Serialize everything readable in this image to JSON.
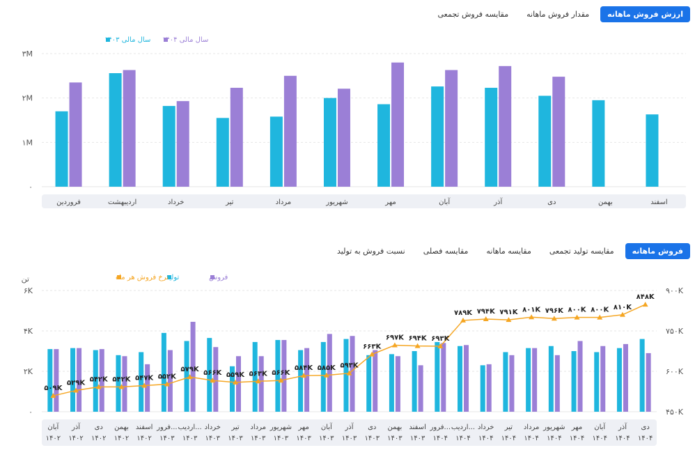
{
  "top_tabs": [
    {
      "label": "ارزش فروش ماهانه",
      "active": true
    },
    {
      "label": "مقدار فروش ماهانه",
      "active": false
    },
    {
      "label": "مقایسه فروش تجمعی",
      "active": false
    }
  ],
  "bottom_tabs": [
    {
      "label": "فروش ماهانه",
      "active": true
    },
    {
      "label": "مقایسه تولید تجمعی",
      "active": false
    },
    {
      "label": "مقایسه ماهانه",
      "active": false
    },
    {
      "label": "مقایسه فصلی",
      "active": false
    },
    {
      "label": "نسبت فروش به تولید",
      "active": false
    }
  ],
  "colors": {
    "cyan": "#1fb6de",
    "purple": "#9b7fd6",
    "orange": "#f5a623",
    "accent": "#1a73e8"
  },
  "chart_data": [
    {
      "type": "bar",
      "yticks": [
        "۰",
        "۱M",
        "۲M",
        "۳M"
      ],
      "ylim": [
        0,
        3000000
      ],
      "categories": [
        "فروردین",
        "اردیبهشت",
        "خرداد",
        "تیر",
        "مرداد",
        "شهریور",
        "مهر",
        "آبان",
        "آذر",
        "دی",
        "بهمن",
        "اسفند"
      ],
      "series": [
        {
          "name": "سال مالی ۱۴۰۳",
          "color": "cyan",
          "values": [
            1700000,
            2560000,
            1820000,
            1550000,
            1580000,
            2000000,
            1860000,
            2260000,
            2230000,
            2050000,
            1950000,
            1630000
          ]
        },
        {
          "name": "سال مالی ۱۴۰۴",
          "color": "purple",
          "values": [
            2350000,
            2630000,
            1930000,
            2230000,
            2500000,
            2210000,
            2800000,
            2630000,
            2720000,
            2480000,
            null,
            null
          ]
        }
      ]
    },
    {
      "type": "bar+line",
      "ylabel_left": "تن",
      "yticks_left": [
        "۰",
        "۲K",
        "۴K",
        "۶K"
      ],
      "ylim_left": [
        0,
        6000
      ],
      "yticks_right": [
        "۴۵۰K",
        "۶۰۰K",
        "۷۵۰K",
        "۹۰۰K"
      ],
      "ylim_right": [
        450000,
        900000
      ],
      "categories": [
        [
          "آبان",
          "۱۴۰۲"
        ],
        [
          "آذر",
          "۱۴۰۲"
        ],
        [
          "دی",
          "۱۴۰۲"
        ],
        [
          "بهمن",
          "۱۴۰۲"
        ],
        [
          "اسفند",
          "۱۴۰۲"
        ],
        [
          "فرور...",
          "۱۴۰۳"
        ],
        [
          "اردیب...",
          "۱۴۰۳"
        ],
        [
          "خرداد",
          "۱۴۰۳"
        ],
        [
          "تیر",
          "۱۴۰۳"
        ],
        [
          "مرداد",
          "۱۴۰۳"
        ],
        [
          "شهریور",
          "۱۴۰۳"
        ],
        [
          "مهر",
          "۱۴۰۳"
        ],
        [
          "آبان",
          "۱۴۰۳"
        ],
        [
          "آذر",
          "۱۴۰۳"
        ],
        [
          "دی",
          "۱۴۰۳"
        ],
        [
          "بهمن",
          "۱۴۰۳"
        ],
        [
          "اسفند",
          "۱۴۰۳"
        ],
        [
          "فرور...",
          "۱۴۰۴"
        ],
        [
          "اردیب...",
          "۱۴۰۴"
        ],
        [
          "خرداد",
          "۱۴۰۴"
        ],
        [
          "تیر",
          "۱۴۰۴"
        ],
        [
          "مرداد",
          "۱۴۰۴"
        ],
        [
          "شهریور",
          "۱۴۰۴"
        ],
        [
          "مهر",
          "۱۴۰۴"
        ],
        [
          "آبان",
          "۱۴۰۴"
        ],
        [
          "آذر",
          "۱۴۰۴"
        ],
        [
          "دی",
          "۱۴۰۴"
        ]
      ],
      "series": [
        {
          "name": "تولید",
          "color": "cyan",
          "axis": "left",
          "values": [
            3100,
            3150,
            3050,
            2800,
            2950,
            3900,
            3500,
            3650,
            2250,
            3450,
            3550,
            3050,
            3450,
            3600,
            2800,
            2850,
            3000,
            3450,
            3250,
            2300,
            2950,
            3150,
            3250,
            3000,
            2950,
            3150,
            3600
          ]
        },
        {
          "name": "فروش",
          "color": "purple",
          "axis": "left",
          "values": [
            3100,
            3150,
            3100,
            2750,
            2350,
            3050,
            4450,
            3200,
            2750,
            2750,
            3550,
            3150,
            3850,
            3750,
            3050,
            2750,
            2300,
            3400,
            3300,
            2350,
            2800,
            3150,
            2800,
            3500,
            3250,
            3350,
            2900
          ]
        },
        {
          "name": "نرخ فروش هر ماه",
          "color": "orange",
          "axis": "right",
          "type": "line",
          "values": [
            509000,
            529000,
            542000,
            542000,
            547000,
            552000,
            579000,
            566000,
            559000,
            563000,
            566000,
            584000,
            585000,
            593000,
            663000,
            697000,
            694000,
            693000,
            789000,
            794000,
            791000,
            801000,
            796000,
            800000,
            800000,
            810000,
            848000
          ],
          "labels": [
            "۵۰۹K",
            "۵۲۹K",
            "۵۴۲K",
            "۵۴۲K",
            "۵۴۷K",
            "۵۵۲K",
            "۵۷۹K",
            "۵۶۶K",
            "۵۵۹K",
            "۵۶۳K",
            "۵۶۶K",
            "۵۸۴K",
            "۵۸۵K",
            "۵۹۳K",
            "۶۶۳K",
            "۶۹۷K",
            "۶۹۴K",
            "۶۹۳K",
            "۷۸۹K",
            "۷۹۴K",
            "۷۹۱K",
            "۸۰۱K",
            "۷۹۶K",
            "۸۰۰K",
            "۸۰۰K",
            "۸۱۰K",
            "۸۴۸K"
          ]
        }
      ]
    }
  ]
}
